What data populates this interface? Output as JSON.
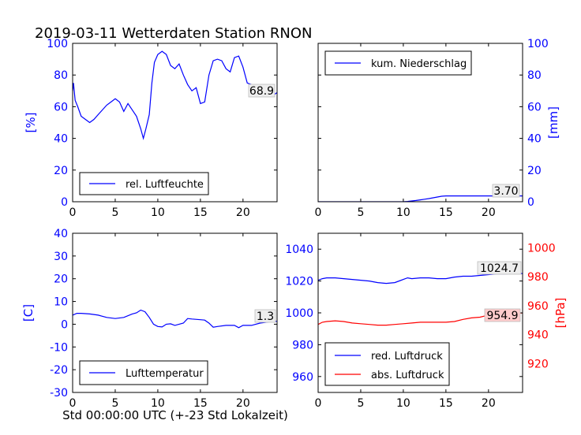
{
  "figure": {
    "title": "2019-03-11 Wetterdaten Station RNON",
    "xlabel": "Std 00:00:00 UTC (+-23 Std Lokalzeit)"
  },
  "colors": {
    "blue": "#0000ff",
    "red": "#ff0000",
    "black": "#000000",
    "tag_fill": "#eeeeee",
    "tag_fill_red": "#ffcccc"
  },
  "chart_data": [
    {
      "type": "line",
      "panel": "humidity",
      "title": "",
      "xlabel": "",
      "ylabel": "[%]",
      "xlim": [
        0,
        24
      ],
      "ylim": [
        0,
        100
      ],
      "xticks": [
        0,
        5,
        10,
        15,
        20
      ],
      "yticks": [
        0,
        20,
        40,
        60,
        80,
        100
      ],
      "ytick_color": "blue",
      "legend": "lower-left",
      "last_value_label": "68.9",
      "series": [
        {
          "name": "rel. Luftfeuchte",
          "color": "blue",
          "x": [
            0,
            0.1,
            0.3,
            0.6,
            1.0,
            1.5,
            2.0,
            2.5,
            3.0,
            3.5,
            4.0,
            4.5,
            5.0,
            5.5,
            6.0,
            6.5,
            7.0,
            7.5,
            8.0,
            8.3,
            8.6,
            9.0,
            9.3,
            9.6,
            10.0,
            10.5,
            11.0,
            11.5,
            12.0,
            12.5,
            13.0,
            13.5,
            14.0,
            14.5,
            15.0,
            15.5,
            16.0,
            16.5,
            17.0,
            17.5,
            18.0,
            18.5,
            19.0,
            19.5,
            20.0,
            20.5,
            21.0,
            21.5,
            22.0,
            22.5,
            23.0,
            23.5,
            24.0
          ],
          "y": [
            70,
            75,
            64,
            60,
            54,
            52,
            50,
            52,
            55,
            58,
            61,
            63,
            65,
            63,
            57,
            62,
            58,
            54,
            46,
            40,
            46,
            55,
            75,
            88,
            93,
            95,
            93,
            86,
            84,
            87,
            80,
            74,
            70,
            72,
            62,
            63,
            80,
            89,
            90,
            89,
            84,
            82,
            91,
            92,
            85,
            75,
            74,
            73,
            72,
            70,
            68,
            67,
            68.9
          ]
        }
      ]
    },
    {
      "type": "line",
      "panel": "precipitation",
      "title": "",
      "xlabel": "",
      "ylabel": "[mm]",
      "xlim": [
        0,
        24
      ],
      "ylim": [
        0,
        100
      ],
      "xticks": [
        0,
        5,
        10,
        15,
        20
      ],
      "yticks": [
        0,
        20,
        40,
        60,
        80,
        100
      ],
      "ytick_color": "blue",
      "yaxis_side": "right",
      "legend": "top-left",
      "last_value_label": "3.70",
      "series": [
        {
          "name": "kum. Niederschlag",
          "color": "blue",
          "x": [
            0,
            10.0,
            10.5,
            11.0,
            11.5,
            12.0,
            12.5,
            13.0,
            13.5,
            14.0,
            14.5,
            15.0,
            24.0
          ],
          "y": [
            0,
            0,
            0.2,
            0.5,
            0.8,
            1.2,
            1.6,
            2.0,
            2.5,
            3.0,
            3.5,
            3.7,
            3.7
          ]
        }
      ]
    },
    {
      "type": "line",
      "panel": "temperature",
      "title": "",
      "xlabel": "",
      "ylabel": "[C]",
      "xlim": [
        0,
        24
      ],
      "ylim": [
        -30,
        40
      ],
      "xticks": [
        0,
        5,
        10,
        15,
        20
      ],
      "yticks": [
        -30,
        -20,
        -10,
        0,
        10,
        20,
        30,
        40
      ],
      "ytick_color": "blue",
      "legend": "lower-left",
      "last_value_label": "1.3",
      "series": [
        {
          "name": "Lufttemperatur",
          "color": "blue",
          "x": [
            0,
            0.5,
            1.0,
            2.0,
            3.0,
            4.0,
            5.0,
            6.0,
            7.0,
            7.5,
            8.0,
            8.5,
            9.0,
            9.5,
            10.0,
            10.5,
            11.0,
            11.5,
            12.0,
            13.0,
            13.5,
            14.0,
            15.0,
            15.5,
            16.0,
            16.5,
            17.0,
            18.0,
            19.0,
            19.5,
            20.0,
            20.5,
            21.0,
            22.0,
            23.0,
            24.0
          ],
          "y": [
            4,
            4.8,
            4.8,
            4.5,
            4,
            3,
            2.5,
            3,
            4.5,
            5,
            6.2,
            5.5,
            3,
            0,
            -1,
            -1.2,
            0,
            0.2,
            -0.5,
            0.5,
            2.5,
            2.3,
            2,
            1.8,
            0.5,
            -1.3,
            -1,
            -0.5,
            -0.5,
            -1.5,
            -0.5,
            -0.5,
            -0.5,
            0.5,
            1.0,
            1.3
          ]
        }
      ]
    },
    {
      "type": "line",
      "panel": "pressure",
      "title": "",
      "xlabel": "",
      "ylabel": "[hPa]",
      "xlim": [
        0,
        24
      ],
      "ylim": [
        950,
        1050
      ],
      "xticks": [
        0,
        5,
        10,
        15,
        20
      ],
      "yticks": [
        960,
        980,
        1000,
        1020,
        1040
      ],
      "ytick_color": "blue",
      "ylim_right": [
        900,
        1010
      ],
      "yticks_right": [
        920,
        940,
        960,
        980,
        1000
      ],
      "ytick_color_right": "red",
      "legend": "lower-left",
      "series": [
        {
          "name": "red. Luftdruck",
          "color": "blue",
          "axis": "left",
          "last_value_label": "1024.7",
          "x": [
            0,
            0.5,
            1,
            2,
            3,
            4,
            5,
            6,
            7,
            8,
            9,
            10,
            10.5,
            11,
            12,
            13,
            14,
            15,
            16,
            17,
            18,
            19,
            20,
            21,
            22,
            23,
            24
          ],
          "y": [
            1020.5,
            1021.5,
            1022,
            1022,
            1021.5,
            1021,
            1020.5,
            1020,
            1019,
            1018.5,
            1019,
            1021,
            1022,
            1021.5,
            1022,
            1022,
            1021.5,
            1021.5,
            1022.5,
            1023,
            1023,
            1023.5,
            1024,
            1024.5,
            1024.5,
            1024.7,
            1024.7
          ]
        },
        {
          "name": "abs. Luftdruck",
          "color": "red",
          "axis": "right",
          "last_value_label": "954.9",
          "x": [
            0,
            0.5,
            1,
            2,
            3,
            4,
            5,
            6,
            7,
            8,
            9,
            10,
            11,
            12,
            13,
            14,
            15,
            16,
            17,
            18,
            19,
            20,
            21,
            22,
            23,
            24
          ],
          "y": [
            947,
            948.5,
            949,
            949.5,
            949,
            948,
            947.5,
            947,
            946.5,
            946.5,
            947,
            947.5,
            948,
            948.5,
            948.5,
            948.5,
            948.5,
            949,
            950.5,
            951.5,
            952,
            953.5,
            954,
            954.5,
            954.8,
            954.9
          ]
        }
      ]
    }
  ]
}
